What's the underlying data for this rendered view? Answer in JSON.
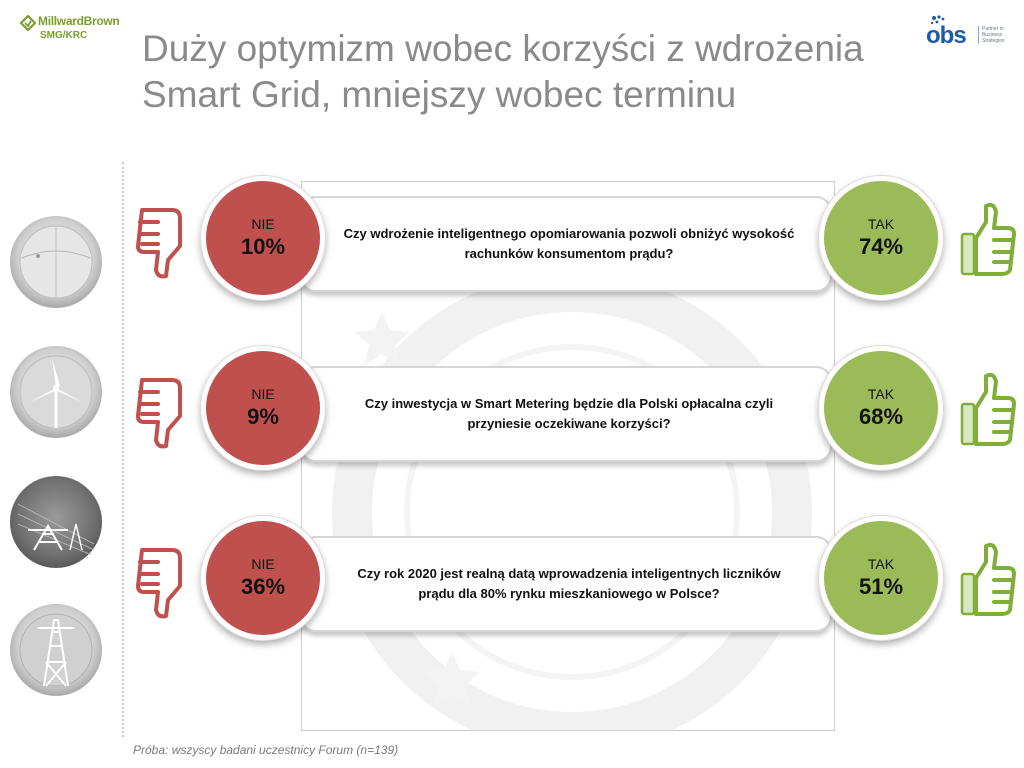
{
  "logos": {
    "millward_brown": {
      "name": "MillwardBrown",
      "sub": "SMG/KRC",
      "color": "#7a9e2e"
    },
    "obs": {
      "word": "obs",
      "tagline": "Partner in Business Strategies",
      "color": "#1f5aa8"
    }
  },
  "title": {
    "line1": "Duży optymizm wobec korzyści z wdrożenia",
    "line2": "Smart Grid, mniejszy wobec terminu"
  },
  "colors": {
    "no": "#c0504d",
    "yes": "#9bbb59",
    "title": "#8a8a8a",
    "thumb_down": "#c0504d",
    "thumb_up": "#7fae3a"
  },
  "rows": [
    {
      "question": "Czy wdrożenie inteligentnego opomiarowania pozwoli obniżyć wysokość rachunków konsumentom prądu?",
      "no_label": "NIE",
      "no_value": "10%",
      "yes_label": "TAK",
      "yes_value": "74%"
    },
    {
      "question": "Czy inwestycja w Smart Metering będzie dla Polski opłacalna czyli przyniesie oczekiwane korzyści?",
      "no_label": "NIE",
      "no_value": "9%",
      "yes_label": "TAK",
      "yes_value": "68%"
    },
    {
      "question": "Czy rok 2020 jest realną datą wprowadzenia inteligentnych liczników prądu dla 80% rynku mieszkaniowego w Polsce?",
      "no_label": "NIE",
      "no_value": "36%",
      "yes_label": "TAK",
      "yes_value": "51%"
    }
  ],
  "icons": {
    "no": "thumbs-down-icon",
    "yes": "thumbs-up-icon",
    "decor": [
      "globe-icon",
      "wind-turbine-icon",
      "power-line-icon",
      "pylon-icon"
    ]
  },
  "footnote": "Próba: wszyscy badani uczestnicy Forum (n=139)"
}
